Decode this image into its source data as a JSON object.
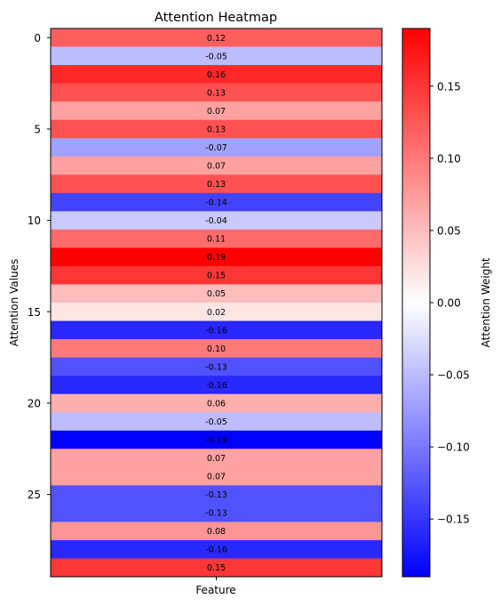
{
  "chart_data": {
    "type": "heatmap",
    "title": "Attention Heatmap",
    "xlabel": "Feature",
    "ylabel": "Attention Values",
    "colorbar_label": "Attention Weight",
    "colormap": "bwr",
    "vmin": -0.19,
    "vmax": 0.19,
    "values": [
      0.12,
      -0.05,
      0.16,
      0.13,
      0.07,
      0.13,
      -0.07,
      0.07,
      0.13,
      -0.14,
      -0.04,
      0.11,
      0.19,
      0.15,
      0.05,
      0.02,
      -0.16,
      0.1,
      -0.13,
      -0.16,
      0.06,
      -0.05,
      -0.19,
      0.07,
      0.07,
      -0.13,
      -0.13,
      0.08,
      -0.16,
      0.15
    ],
    "cell_labels": [
      "0.12",
      "-0.05",
      "0.16",
      "0.13",
      "0.07",
      "0.13",
      "-0.07",
      "0.07",
      "0.13",
      "-0.14",
      "-0.04",
      "0.11",
      "0.19",
      "0.15",
      "0.05",
      "0.02",
      "-0.16",
      "0.10",
      "-0.13",
      "-0.16",
      "0.06",
      "-0.05",
      "-0.19",
      "0.07",
      "0.07",
      "-0.13",
      "-0.13",
      "0.08",
      "-0.16",
      "0.15"
    ],
    "y_ticks": [
      "0",
      "5",
      "10",
      "15",
      "20",
      "25"
    ],
    "colorbar_ticks": [
      "0.15",
      "0.10",
      "0.05",
      "0.00",
      "−0.05",
      "−0.10",
      "−0.15"
    ]
  }
}
